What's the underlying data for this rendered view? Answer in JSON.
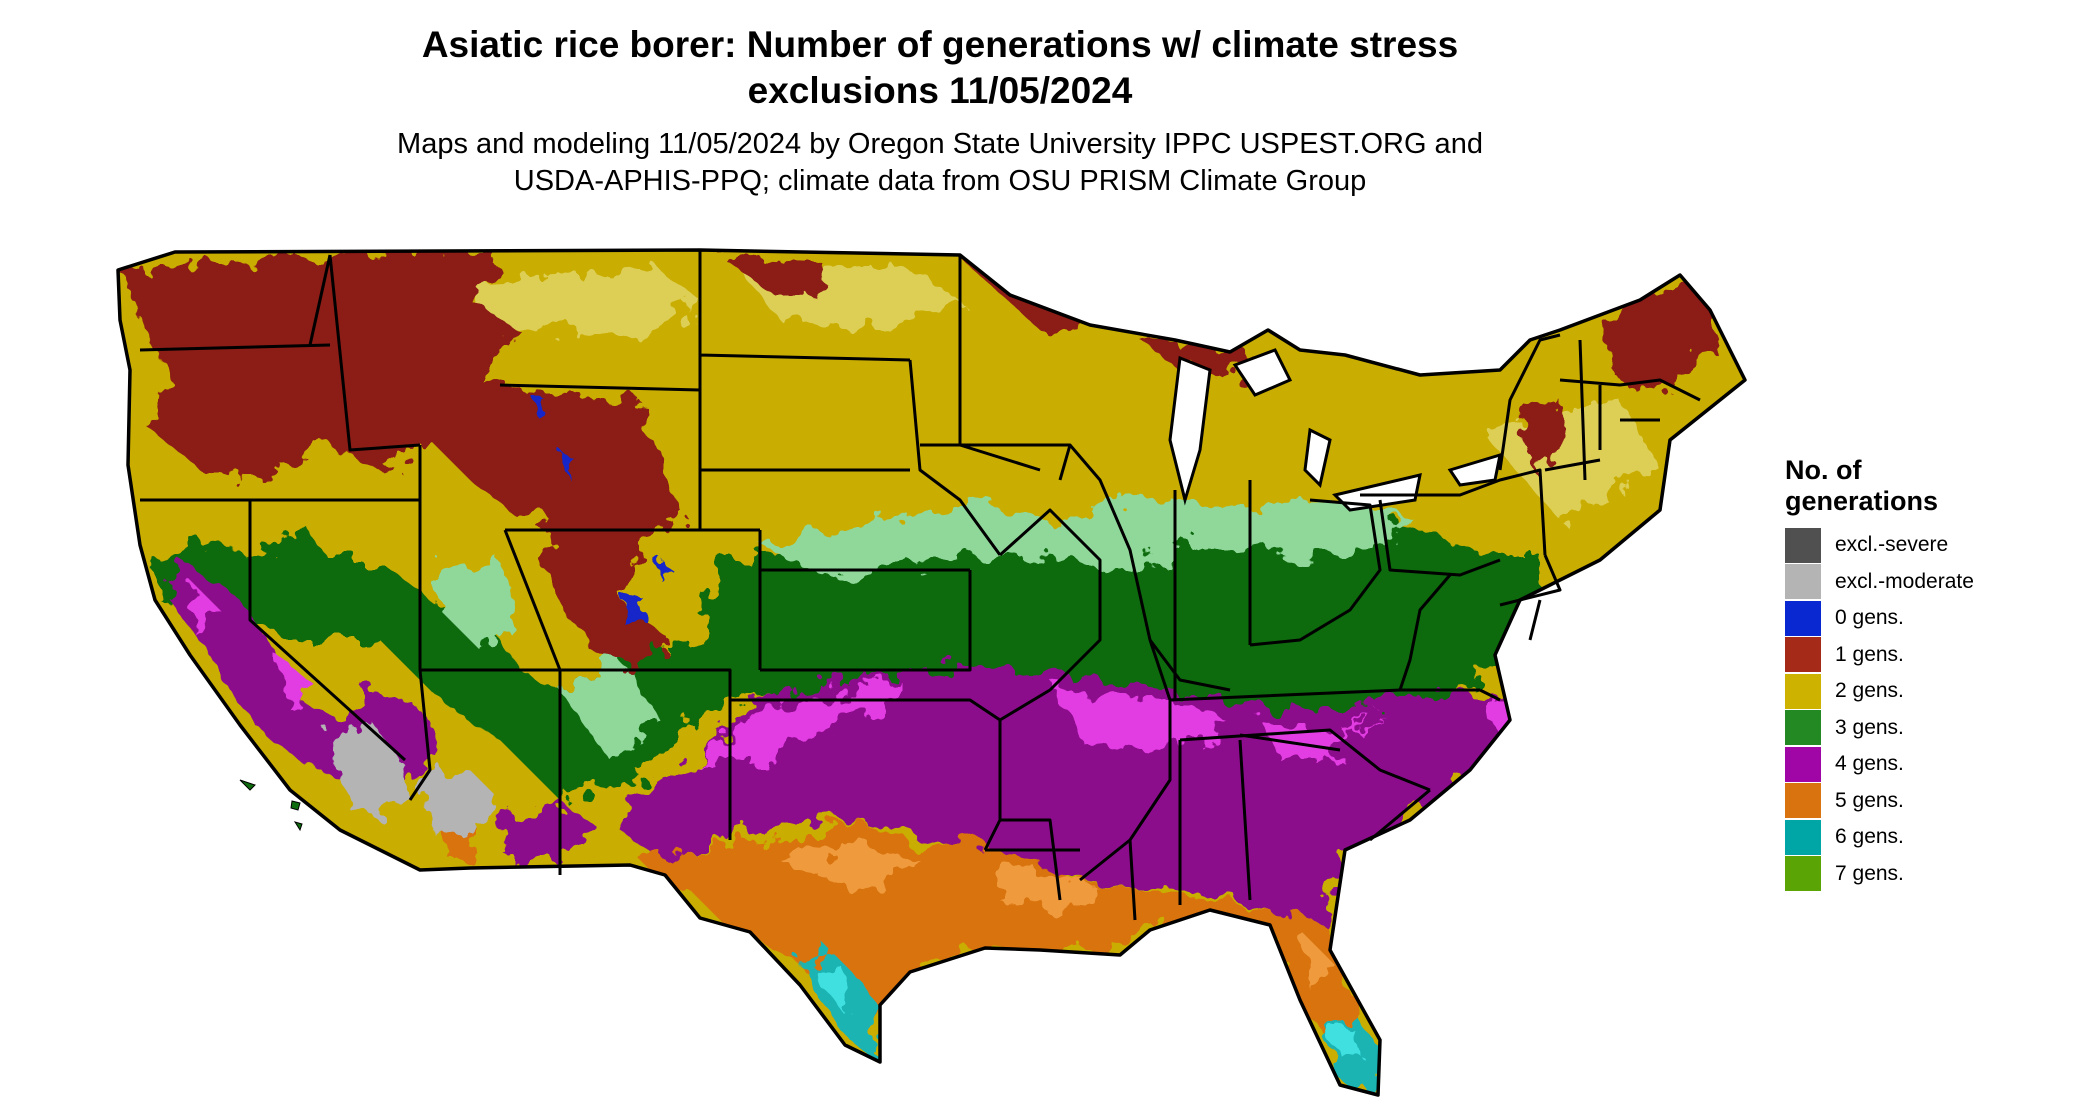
{
  "title": {
    "line1": "Asiatic rice borer: Number of generations w/ climate stress",
    "line2": "exclusions 11/05/2024"
  },
  "subtitle": {
    "line1": "Maps and modeling 11/05/2024 by Oregon State University IPPC USPEST.ORG and",
    "line2": "USDA-APHIS-PPQ; climate data from OSU PRISM Climate Group"
  },
  "legend": {
    "title_line1": "No. of",
    "title_line2": "generations",
    "items": [
      {
        "label": "excl.-severe",
        "color": "#505050"
      },
      {
        "label": "excl.-moderate",
        "color": "#b4b4b4"
      },
      {
        "label": "0 gens.",
        "color": "#0a28d2"
      },
      {
        "label": "1 gens.",
        "color": "#a52a17"
      },
      {
        "label": "2 gens.",
        "color": "#cdb200"
      },
      {
        "label": "3 gens.",
        "color": "#238a23"
      },
      {
        "label": "4 gens.",
        "color": "#a005a5"
      },
      {
        "label": "5 gens.",
        "color": "#d9730f"
      },
      {
        "label": "6 gens.",
        "color": "#00a5a5"
      },
      {
        "label": "7 gens.",
        "color": "#5aa505"
      }
    ]
  },
  "map_colors": {
    "gen1": "#8b1e14",
    "gen2": "#c9ad00",
    "gen2_light": "#ddcf55",
    "gen3": "#0e6b0e",
    "gen3_light": "#8fd89a",
    "gen4": "#8c0a8c",
    "gen4_light": "#e23ce2",
    "gen5": "#d9730f",
    "gen5_light": "#ee9a3c",
    "gen6": "#1ab3b3",
    "gen6_light": "#3fe0e0",
    "excl_moderate": "#b4b4b4",
    "gen0": "#1428c8"
  }
}
